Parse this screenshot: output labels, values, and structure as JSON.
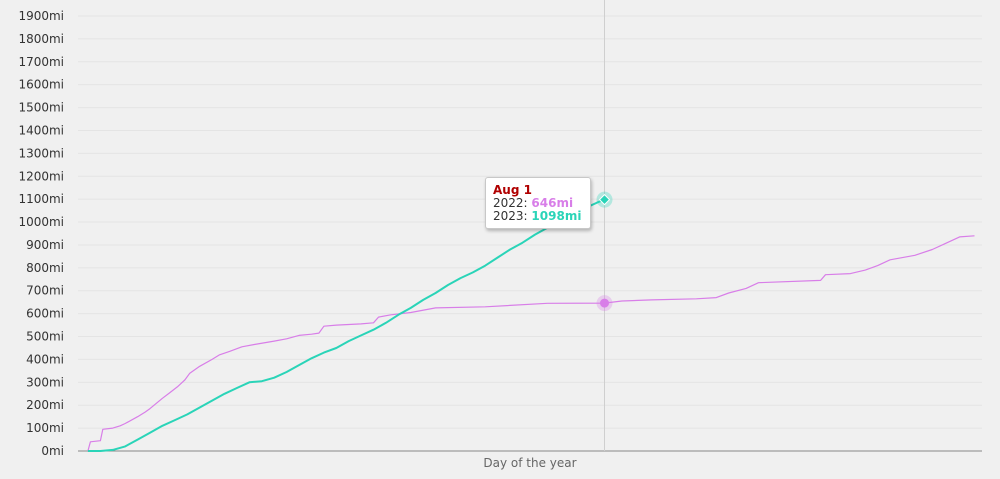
{
  "chart_data": {
    "type": "line",
    "xlabel": "Day of the year",
    "ylabel": "",
    "y_unit": "mi",
    "xlim": [
      1,
      365
    ],
    "ylim": [
      0,
      1900
    ],
    "y_ticks": [
      "0mi",
      "100mi",
      "200mi",
      "300mi",
      "400mi",
      "500mi",
      "600mi",
      "700mi",
      "800mi",
      "900mi",
      "1000mi",
      "1100mi",
      "1200mi",
      "1300mi",
      "1400mi",
      "1500mi",
      "1600mi",
      "1700mi",
      "1800mi",
      "1900mi"
    ],
    "grid": true,
    "crosshair_day": 213,
    "series": [
      {
        "name": "2022",
        "color": "#d87ee8",
        "points": [
          [
            5,
            0
          ],
          [
            6,
            40
          ],
          [
            10,
            45
          ],
          [
            11,
            95
          ],
          [
            15,
            100
          ],
          [
            18,
            110
          ],
          [
            20,
            120
          ],
          [
            25,
            150
          ],
          [
            28,
            170
          ],
          [
            30,
            185
          ],
          [
            35,
            230
          ],
          [
            38,
            255
          ],
          [
            41,
            280
          ],
          [
            44,
            310
          ],
          [
            46,
            340
          ],
          [
            50,
            370
          ],
          [
            55,
            400
          ],
          [
            58,
            420
          ],
          [
            62,
            435
          ],
          [
            67,
            455
          ],
          [
            72,
            465
          ],
          [
            80,
            480
          ],
          [
            85,
            490
          ],
          [
            90,
            505
          ],
          [
            95,
            510
          ],
          [
            98,
            515
          ],
          [
            100,
            545
          ],
          [
            105,
            550
          ],
          [
            115,
            555
          ],
          [
            120,
            560
          ],
          [
            122,
            585
          ],
          [
            127,
            595
          ],
          [
            135,
            605
          ],
          [
            145,
            625
          ],
          [
            165,
            630
          ],
          [
            190,
            645
          ],
          [
            213,
            646
          ],
          [
            220,
            655
          ],
          [
            232,
            660
          ],
          [
            250,
            665
          ],
          [
            258,
            670
          ],
          [
            263,
            690
          ],
          [
            270,
            710
          ],
          [
            275,
            735
          ],
          [
            300,
            745
          ],
          [
            302,
            770
          ],
          [
            312,
            775
          ],
          [
            318,
            790
          ],
          [
            323,
            810
          ],
          [
            328,
            835
          ],
          [
            338,
            855
          ],
          [
            345,
            880
          ],
          [
            350,
            905
          ],
          [
            356,
            935
          ],
          [
            362,
            940
          ]
        ]
      },
      {
        "name": "2023",
        "color": "#2ad4b8",
        "points": [
          [
            5,
            0
          ],
          [
            10,
            0
          ],
          [
            15,
            5
          ],
          [
            20,
            20
          ],
          [
            25,
            50
          ],
          [
            30,
            80
          ],
          [
            35,
            110
          ],
          [
            40,
            135
          ],
          [
            45,
            160
          ],
          [
            50,
            190
          ],
          [
            55,
            220
          ],
          [
            60,
            250
          ],
          [
            65,
            275
          ],
          [
            70,
            300
          ],
          [
            75,
            305
          ],
          [
            80,
            320
          ],
          [
            85,
            345
          ],
          [
            90,
            375
          ],
          [
            95,
            405
          ],
          [
            100,
            430
          ],
          [
            105,
            450
          ],
          [
            110,
            480
          ],
          [
            115,
            505
          ],
          [
            120,
            530
          ],
          [
            125,
            560
          ],
          [
            130,
            595
          ],
          [
            135,
            625
          ],
          [
            140,
            660
          ],
          [
            145,
            690
          ],
          [
            150,
            725
          ],
          [
            155,
            755
          ],
          [
            160,
            780
          ],
          [
            165,
            810
          ],
          [
            170,
            845
          ],
          [
            175,
            880
          ],
          [
            180,
            910
          ],
          [
            185,
            945
          ],
          [
            190,
            975
          ],
          [
            195,
            1005
          ],
          [
            200,
            1035
          ],
          [
            205,
            1060
          ],
          [
            210,
            1085
          ],
          [
            213,
            1098
          ]
        ]
      }
    ],
    "tooltip": {
      "date": "Aug 1",
      "rows": [
        {
          "label": "2022:",
          "value": "646mi"
        },
        {
          "label": "2023:",
          "value": "1098mi"
        }
      ]
    }
  }
}
